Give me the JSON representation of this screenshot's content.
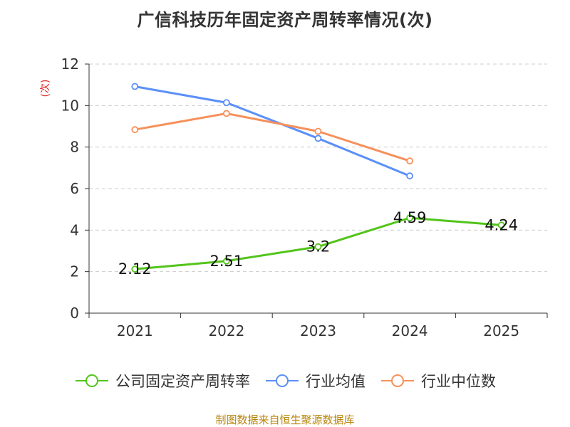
{
  "chart_data": {
    "type": "line",
    "title": "广信科技历年固定资产周转率情况(次)",
    "ylabel": "(次)",
    "xlabel": "",
    "ylim": [
      0,
      12
    ],
    "yticks": [
      0,
      2,
      4,
      6,
      8,
      10,
      12
    ],
    "grid": true,
    "categories": [
      "2021",
      "2022",
      "2023",
      "2024",
      "2025"
    ],
    "series": [
      {
        "name": "公司固定资产周转率",
        "color": "#52c41a",
        "values": [
          2.12,
          2.51,
          3.2,
          4.59,
          4.24
        ],
        "data_labels": [
          "2.12",
          "2.51",
          "3.2",
          "4.59",
          "4.24"
        ]
      },
      {
        "name": "行业均值",
        "color": "#5b8ff9",
        "values": [
          10.92,
          10.14,
          8.42,
          6.61,
          null
        ]
      },
      {
        "name": "行业中位数",
        "color": "#f6905a",
        "values": [
          8.84,
          9.62,
          8.76,
          7.33,
          null
        ]
      }
    ],
    "legend_position": "bottom",
    "source": "制图数据来自恒生聚源数据库",
    "colors": {
      "axis": "#333333",
      "grid": "#cccccc",
      "ylabel": "#e02020",
      "source": "#b8860b"
    }
  }
}
